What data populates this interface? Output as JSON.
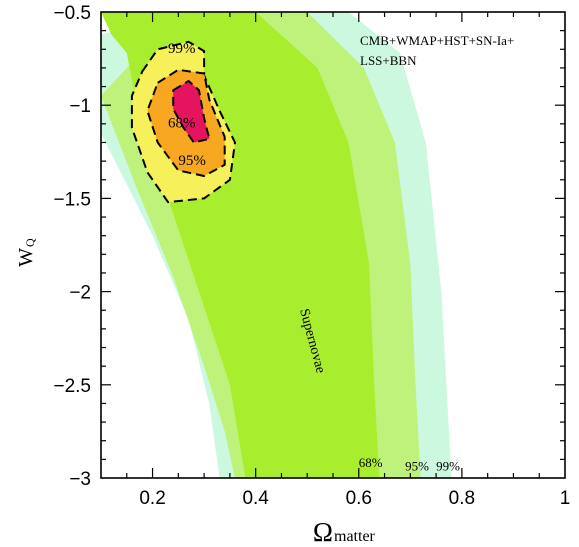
{
  "chart_data": {
    "type": "contour",
    "xlabel": {
      "main": "Ω",
      "sub": "matter"
    },
    "ylabel": {
      "main": "W",
      "sub": "Q"
    },
    "xlim": [
      0.1,
      1.0
    ],
    "ylim": [
      -3.0,
      -0.5
    ],
    "x_ticks": [
      0.2,
      0.4,
      0.6,
      0.8,
      1.0
    ],
    "x_tick_labels": [
      "0.2",
      "0.4",
      "0.6",
      "0.8",
      "1"
    ],
    "y_ticks": [
      -0.5,
      -1.0,
      -1.5,
      -2.0,
      -2.5,
      -3.0
    ],
    "y_tick_labels": [
      "−0.5",
      "−1",
      "−1.5",
      "−2",
      "−2.5",
      "−3"
    ],
    "legend_text": [
      "CMB+WMAP+HST+SN-Ia+",
      "LSS+BBN"
    ],
    "supernovae_band": {
      "label": "Supernovae",
      "levels": [
        {
          "label": "99%",
          "color": "#ccf8e0",
          "left": [
            [
              0.1,
              -0.62
            ],
            [
              0.1,
              -1.15
            ],
            [
              0.2,
              -1.7
            ],
            [
              0.27,
              -2.15
            ],
            [
              0.31,
              -2.6
            ],
            [
              0.33,
              -3.0
            ]
          ],
          "right": [
            [
              0.31,
              -0.5
            ],
            [
              0.58,
              -0.5
            ],
            [
              0.68,
              -0.72
            ],
            [
              0.73,
              -1.2
            ],
            [
              0.76,
              -2.0
            ],
            [
              0.77,
              -2.5
            ],
            [
              0.78,
              -3.0
            ]
          ]
        },
        {
          "label": "95%",
          "color": "#bff27a",
          "left": [
            [
              0.1,
              -0.95
            ],
            [
              0.17,
              -1.45
            ],
            [
              0.24,
              -1.92
            ],
            [
              0.3,
              -2.4
            ],
            [
              0.34,
              -2.75
            ],
            [
              0.36,
              -3.0
            ]
          ],
          "right": [
            [
              0.25,
              -0.5
            ],
            [
              0.5,
              -0.5
            ],
            [
              0.61,
              -0.8
            ],
            [
              0.67,
              -1.2
            ],
            [
              0.7,
              -1.85
            ],
            [
              0.71,
              -2.5
            ],
            [
              0.72,
              -3.0
            ]
          ]
        },
        {
          "label": "68%",
          "color": "#a8ee2e",
          "left": [
            [
              0.1,
              -0.5
            ],
            [
              0.12,
              -0.62
            ],
            [
              0.15,
              -0.72
            ],
            [
              0.18,
              -1.15
            ],
            [
              0.23,
              -1.5
            ],
            [
              0.29,
              -2.0
            ],
            [
              0.35,
              -2.5
            ],
            [
              0.38,
              -3.0
            ]
          ],
          "right": [
            [
              0.14,
              -0.5
            ],
            [
              0.4,
              -0.5
            ],
            [
              0.52,
              -0.8
            ],
            [
              0.58,
              -1.2
            ],
            [
              0.62,
              -1.85
            ],
            [
              0.63,
              -2.5
            ],
            [
              0.64,
              -3.0
            ]
          ]
        }
      ],
      "level_labels": [
        {
          "text": "68%",
          "x": 0.6,
          "y": -2.94
        },
        {
          "text": "95%",
          "x": 0.69,
          "y": -2.96
        },
        {
          "text": "99%",
          "x": 0.75,
          "y": -2.96
        }
      ]
    },
    "combined_contours": {
      "levels": [
        {
          "label": "99%",
          "color": "#f6f05a",
          "points": [
            [
              0.18,
              -0.82
            ],
            [
              0.21,
              -0.7
            ],
            [
              0.27,
              -0.66
            ],
            [
              0.3,
              -0.71
            ],
            [
              0.3,
              -0.84
            ],
            [
              0.33,
              -1.03
            ],
            [
              0.36,
              -1.2
            ],
            [
              0.35,
              -1.4
            ],
            [
              0.3,
              -1.5
            ],
            [
              0.23,
              -1.52
            ],
            [
              0.19,
              -1.36
            ],
            [
              0.16,
              -1.12
            ],
            [
              0.16,
              -0.95
            ]
          ]
        },
        {
          "label": "95%",
          "color": "#f7a820",
          "points": [
            [
              0.21,
              -0.88
            ],
            [
              0.25,
              -0.81
            ],
            [
              0.3,
              -0.83
            ],
            [
              0.31,
              -0.97
            ],
            [
              0.34,
              -1.17
            ],
            [
              0.34,
              -1.32
            ],
            [
              0.3,
              -1.38
            ],
            [
              0.25,
              -1.35
            ],
            [
              0.21,
              -1.2
            ],
            [
              0.19,
              -1.03
            ]
          ]
        },
        {
          "label": "68%",
          "color": "#e6135e",
          "points": [
            [
              0.24,
              -0.92
            ],
            [
              0.27,
              -0.87
            ],
            [
              0.29,
              -0.92
            ],
            [
              0.3,
              -1.07
            ],
            [
              0.31,
              -1.18
            ],
            [
              0.28,
              -1.2
            ],
            [
              0.26,
              -1.12
            ],
            [
              0.24,
              -1.02
            ]
          ]
        }
      ],
      "level_labels": [
        {
          "text": "99%",
          "x": 0.23,
          "y": -0.72
        },
        {
          "text": "68%",
          "x": 0.23,
          "y": -1.12
        },
        {
          "text": "95%",
          "x": 0.25,
          "y": -1.32
        }
      ]
    }
  }
}
